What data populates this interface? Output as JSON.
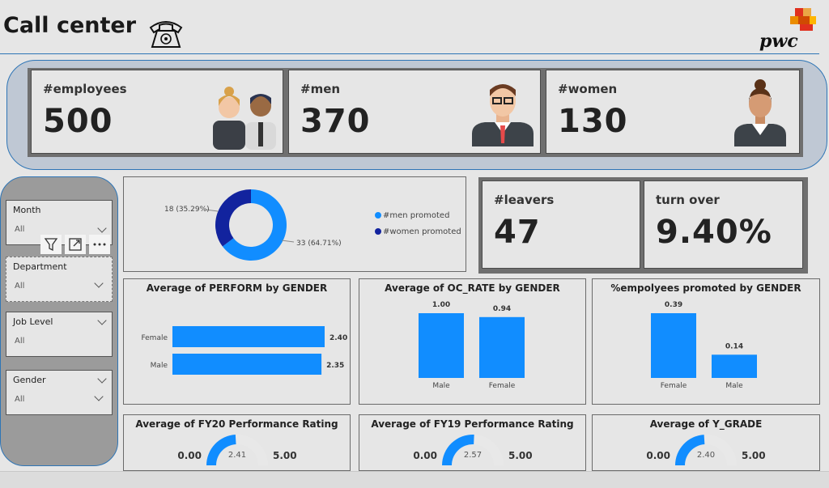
{
  "header": {
    "title": "Call center",
    "logo_text": "pwc"
  },
  "kpis": {
    "employees": {
      "label": "#employees",
      "value": "500"
    },
    "men": {
      "label": "#men",
      "value": "370"
    },
    "women": {
      "label": "#women",
      "value": "130"
    },
    "leavers": {
      "label": "#leavers",
      "value": "47"
    },
    "turnover": {
      "label": "turn over",
      "value": "9.40%"
    }
  },
  "slicers": [
    {
      "label": "Month",
      "value": "All"
    },
    {
      "label": "Department",
      "value": "All"
    },
    {
      "label": "Job Level",
      "value": "All"
    },
    {
      "label": "Gender",
      "value": "All"
    }
  ],
  "visual_tools": [
    "filter-icon",
    "focus-mode-icon",
    "more-options-icon"
  ],
  "colors": {
    "accent": "#118dff",
    "dark": "#12239e",
    "border": "#2e75b6",
    "gauge_bg": "#e8e8e8"
  },
  "chart_data": [
    {
      "type": "pie",
      "title": "",
      "categories": [
        "#men promoted",
        "#women promoted"
      ],
      "values": [
        33,
        18
      ],
      "labels": [
        "33 (64.71%)",
        "18 (35.29%)"
      ],
      "colors": [
        "#118dff",
        "#12239e"
      ],
      "legend": "right"
    },
    {
      "type": "bar",
      "orientation": "horizontal",
      "title": "Average of PERFORM by GENDER",
      "categories": [
        "Female",
        "Male"
      ],
      "values": [
        2.4,
        2.35
      ],
      "labels": [
        "2.40",
        "2.35"
      ]
    },
    {
      "type": "bar",
      "title": "Average of OC_RATE by GENDER",
      "categories": [
        "Male",
        "Female"
      ],
      "values": [
        1.0,
        0.94
      ],
      "labels": [
        "1.00",
        "0.94"
      ]
    },
    {
      "type": "bar",
      "title": "%empolyees promoted by GENDER",
      "categories": [
        "Female",
        "Male"
      ],
      "values": [
        0.39,
        0.14
      ],
      "labels": [
        "0.39",
        "0.14"
      ]
    },
    {
      "type": "gauge",
      "title": "Average of FY20 Performance Rating",
      "value": 2.41,
      "min": 0,
      "max": 5,
      "value_label": "2.41",
      "min_label": "0.00",
      "max_label": "5.00"
    },
    {
      "type": "gauge",
      "title": "Average of FY19 Performance Rating",
      "value": 2.57,
      "min": 0,
      "max": 5,
      "value_label": "2.57",
      "min_label": "0.00",
      "max_label": "5.00"
    },
    {
      "type": "gauge",
      "title": "Average of Y_GRADE",
      "value": 2.4,
      "min": 0,
      "max": 5,
      "value_label": "2.40",
      "min_label": "0.00",
      "max_label": "5.00"
    }
  ]
}
